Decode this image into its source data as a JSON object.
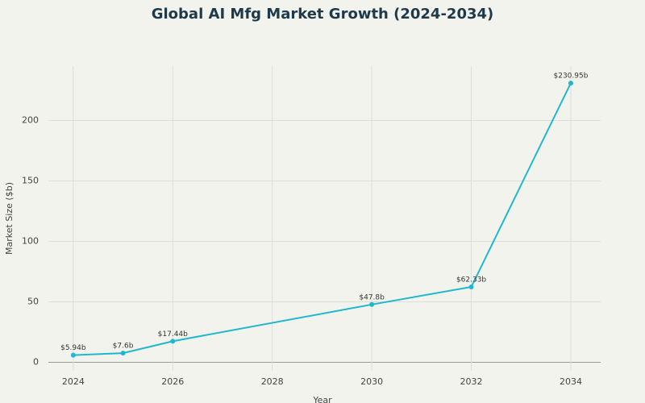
{
  "chart_data": {
    "type": "line",
    "title": "Global AI Mfg Market Growth (2024-2034)",
    "x_label": "Year",
    "y_label": "Market Size ($b)",
    "x": [
      2024,
      2025,
      2026,
      2030,
      2032,
      2034
    ],
    "series": [
      {
        "name": "Market Size",
        "color": "#1fb8cd",
        "values": [
          5.94,
          7.6,
          17.44,
          47.8,
          62.33,
          230.95
        ],
        "value_labels": [
          "$5.94b",
          "$7.6b",
          "$17.44b",
          "$47.8b",
          "$62.33b",
          "$230.95b"
        ]
      }
    ],
    "xlim": [
      2023.5,
      2034.6
    ],
    "xticks": [
      2024,
      2026,
      2028,
      2030,
      2032,
      2034
    ],
    "ylim": [
      -7,
      245
    ],
    "yticks": [
      0,
      50,
      100,
      150,
      200
    ],
    "grid": true
  }
}
